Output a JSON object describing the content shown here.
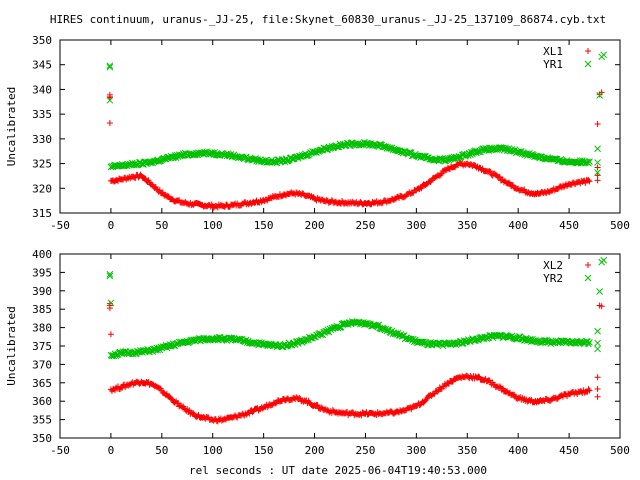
{
  "title": "HIRES continuum, uranus-_JJ-25, file:Skynet_60830_uranus-_JJ-25_137109_86874.cyb.txt",
  "xlabel": "rel seconds : UT date 2025-06-04T19:40:53.000",
  "colors": {
    "red": "#ff0000",
    "green": "#00c000"
  },
  "chart_data": [
    {
      "type": "scatter",
      "ylabel": "Uncalibrated",
      "xlim": [
        -50,
        500
      ],
      "ylim": [
        315,
        350
      ],
      "xticks": [
        "-50",
        "0",
        "50",
        "100",
        "150",
        "200",
        "250",
        "300",
        "350",
        "400",
        "450",
        "500"
      ],
      "yticks": [
        "315",
        "320",
        "325",
        "330",
        "335",
        "340",
        "345",
        "350"
      ],
      "legend_position": "top-right",
      "series": [
        {
          "name": "XL1",
          "color": "#ff0000",
          "marker": "plus",
          "points": [
            [
              -1,
              338.5
            ],
            [
              -1,
              338.9
            ],
            [
              -1,
              333.2
            ],
            [
              -1,
              338.3
            ],
            [
              0,
              321.5
            ],
            [
              10,
              321.8
            ],
            [
              20,
              322.3
            ],
            [
              30,
              322.5
            ],
            [
              40,
              320.8
            ],
            [
              50,
              319.0
            ],
            [
              60,
              317.8
            ],
            [
              70,
              317.1
            ],
            [
              80,
              316.8
            ],
            [
              90,
              316.6
            ],
            [
              100,
              316.4
            ],
            [
              110,
              316.4
            ],
            [
              120,
              316.6
            ],
            [
              130,
              316.9
            ],
            [
              140,
              317.2
            ],
            [
              150,
              317.6
            ],
            [
              160,
              318.2
            ],
            [
              170,
              318.8
            ],
            [
              180,
              319.0
            ],
            [
              190,
              318.6
            ],
            [
              200,
              317.9
            ],
            [
              210,
              317.4
            ],
            [
              220,
              317.2
            ],
            [
              230,
              317.1
            ],
            [
              240,
              317.0
            ],
            [
              250,
              317.0
            ],
            [
              260,
              317.1
            ],
            [
              270,
              317.4
            ],
            [
              280,
              317.9
            ],
            [
              290,
              318.6
            ],
            [
              300,
              319.6
            ],
            [
              310,
              320.9
            ],
            [
              320,
              322.4
            ],
            [
              330,
              323.8
            ],
            [
              340,
              324.8
            ],
            [
              350,
              325.0
            ],
            [
              360,
              324.4
            ],
            [
              370,
              323.4
            ],
            [
              380,
              322.3
            ],
            [
              390,
              321.0
            ],
            [
              400,
              319.9
            ],
            [
              410,
              319.2
            ],
            [
              420,
              318.9
            ],
            [
              430,
              319.3
            ],
            [
              440,
              320.1
            ],
            [
              450,
              320.9
            ],
            [
              460,
              321.3
            ],
            [
              470,
              321.4
            ],
            [
              478,
              321.6
            ],
            [
              478,
              322.6
            ],
            [
              478,
              333.0
            ],
            [
              480,
              339.0
            ],
            [
              482,
              339.4
            ],
            [
              478,
              324.2
            ]
          ]
        },
        {
          "name": "YR1",
          "color": "#00c000",
          "marker": "cross",
          "points": [
            [
              -1,
              344.8
            ],
            [
              -1,
              344.5
            ],
            [
              -1,
              337.8
            ],
            [
              0,
              324.3
            ],
            [
              10,
              324.6
            ],
            [
              20,
              324.8
            ],
            [
              30,
              325.0
            ],
            [
              40,
              325.3
            ],
            [
              50,
              325.8
            ],
            [
              60,
              326.3
            ],
            [
              70,
              326.7
            ],
            [
              80,
              327.0
            ],
            [
              90,
              327.1
            ],
            [
              100,
              327.1
            ],
            [
              110,
              326.9
            ],
            [
              120,
              326.6
            ],
            [
              130,
              326.2
            ],
            [
              140,
              325.8
            ],
            [
              150,
              325.5
            ],
            [
              160,
              325.4
            ],
            [
              170,
              325.6
            ],
            [
              180,
              326.0
            ],
            [
              190,
              326.7
            ],
            [
              200,
              327.4
            ],
            [
              210,
              328.0
            ],
            [
              220,
              328.5
            ],
            [
              230,
              328.8
            ],
            [
              240,
              329.0
            ],
            [
              250,
              329.0
            ],
            [
              260,
              328.8
            ],
            [
              270,
              328.4
            ],
            [
              280,
              327.8
            ],
            [
              290,
              327.2
            ],
            [
              300,
              326.6
            ],
            [
              310,
              326.1
            ],
            [
              320,
              325.8
            ],
            [
              330,
              325.8
            ],
            [
              340,
              326.2
            ],
            [
              350,
              326.9
            ],
            [
              360,
              327.5
            ],
            [
              370,
              327.9
            ],
            [
              380,
              328.0
            ],
            [
              390,
              327.8
            ],
            [
              400,
              327.4
            ],
            [
              410,
              326.9
            ],
            [
              420,
              326.4
            ],
            [
              430,
              326.0
            ],
            [
              440,
              325.6
            ],
            [
              450,
              325.4
            ],
            [
              460,
              325.3
            ],
            [
              470,
              325.4
            ],
            [
              478,
              325.2
            ],
            [
              478,
              328.0
            ],
            [
              480,
              338.8
            ],
            [
              482,
              346.6
            ],
            [
              484,
              347.0
            ],
            [
              478,
              323.2
            ]
          ]
        }
      ]
    },
    {
      "type": "scatter",
      "ylabel": "Uncalibrated",
      "xlim": [
        -50,
        500
      ],
      "ylim": [
        350,
        400
      ],
      "xticks": [
        "-50",
        "0",
        "50",
        "100",
        "150",
        "200",
        "250",
        "300",
        "350",
        "400",
        "450",
        "500"
      ],
      "yticks": [
        "350",
        "355",
        "360",
        "365",
        "370",
        "375",
        "380",
        "385",
        "390",
        "395",
        "400"
      ],
      "legend_position": "top-right",
      "series": [
        {
          "name": "XL2",
          "color": "#ff0000",
          "marker": "plus",
          "points": [
            [
              -1,
              386.0
            ],
            [
              -1,
              386.5
            ],
            [
              0,
              378.2
            ],
            [
              -1,
              385.3
            ],
            [
              0,
              363.2
            ],
            [
              10,
              363.8
            ],
            [
              20,
              364.8
            ],
            [
              30,
              365.3
            ],
            [
              40,
              364.7
            ],
            [
              50,
              362.8
            ],
            [
              60,
              360.5
            ],
            [
              70,
              358.3
            ],
            [
              80,
              356.6
            ],
            [
              90,
              355.5
            ],
            [
              100,
              354.9
            ],
            [
              110,
              355.0
            ],
            [
              120,
              355.6
            ],
            [
              130,
              356.4
            ],
            [
              140,
              357.3
            ],
            [
              150,
              358.3
            ],
            [
              160,
              359.6
            ],
            [
              170,
              360.6
            ],
            [
              180,
              360.8
            ],
            [
              190,
              360.2
            ],
            [
              200,
              358.9
            ],
            [
              210,
              357.7
            ],
            [
              220,
              357.0
            ],
            [
              230,
              356.7
            ],
            [
              240,
              356.6
            ],
            [
              250,
              356.6
            ],
            [
              260,
              356.6
            ],
            [
              270,
              356.7
            ],
            [
              280,
              357.0
            ],
            [
              290,
              357.6
            ],
            [
              300,
              358.7
            ],
            [
              310,
              360.6
            ],
            [
              320,
              362.8
            ],
            [
              330,
              364.8
            ],
            [
              340,
              366.3
            ],
            [
              350,
              366.8
            ],
            [
              360,
              366.4
            ],
            [
              370,
              365.5
            ],
            [
              380,
              364.0
            ],
            [
              390,
              362.3
            ],
            [
              400,
              360.9
            ],
            [
              410,
              360.1
            ],
            [
              420,
              359.9
            ],
            [
              430,
              360.3
            ],
            [
              440,
              361.1
            ],
            [
              450,
              361.9
            ],
            [
              460,
              362.5
            ],
            [
              470,
              362.9
            ],
            [
              478,
              363.3
            ],
            [
              478,
              366.5
            ],
            [
              480,
              386.0
            ],
            [
              482,
              385.8
            ],
            [
              478,
              361.2
            ]
          ]
        },
        {
          "name": "YR2",
          "color": "#00c000",
          "marker": "cross",
          "points": [
            [
              -1,
              394.5
            ],
            [
              -1,
              394.0
            ],
            [
              0,
              386.7
            ],
            [
              0,
              372.5
            ],
            [
              10,
              373.0
            ],
            [
              20,
              373.2
            ],
            [
              30,
              373.4
            ],
            [
              40,
              373.8
            ],
            [
              50,
              374.4
            ],
            [
              60,
              375.2
            ],
            [
              70,
              375.9
            ],
            [
              80,
              376.4
            ],
            [
              90,
              376.8
            ],
            [
              100,
              377.0
            ],
            [
              110,
              377.0
            ],
            [
              120,
              376.8
            ],
            [
              130,
              376.4
            ],
            [
              140,
              375.9
            ],
            [
              150,
              375.4
            ],
            [
              160,
              375.1
            ],
            [
              170,
              375.2
            ],
            [
              180,
              375.7
            ],
            [
              190,
              376.5
            ],
            [
              200,
              377.5
            ],
            [
              210,
              378.7
            ],
            [
              220,
              380.0
            ],
            [
              230,
              380.9
            ],
            [
              240,
              381.4
            ],
            [
              250,
              381.2
            ],
            [
              260,
              380.6
            ],
            [
              270,
              379.6
            ],
            [
              280,
              378.4
            ],
            [
              290,
              377.2
            ],
            [
              300,
              376.2
            ],
            [
              310,
              375.6
            ],
            [
              320,
              375.4
            ],
            [
              330,
              375.5
            ],
            [
              340,
              375.8
            ],
            [
              350,
              376.3
            ],
            [
              360,
              376.9
            ],
            [
              370,
              377.4
            ],
            [
              380,
              377.7
            ],
            [
              390,
              377.6
            ],
            [
              400,
              377.2
            ],
            [
              410,
              376.7
            ],
            [
              420,
              376.3
            ],
            [
              430,
              376.1
            ],
            [
              440,
              376.0
            ],
            [
              450,
              376.0
            ],
            [
              460,
              376.0
            ],
            [
              470,
              376.0
            ],
            [
              478,
              375.8
            ],
            [
              478,
              379.0
            ],
            [
              480,
              389.8
            ],
            [
              482,
              397.8
            ],
            [
              484,
              398.3
            ],
            [
              478,
              374.2
            ]
          ]
        }
      ]
    }
  ]
}
